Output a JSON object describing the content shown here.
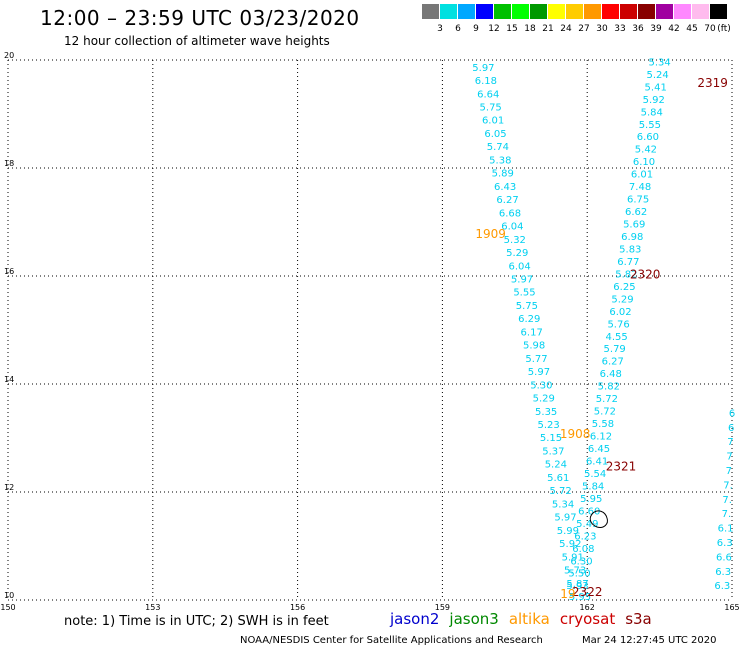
{
  "header": {
    "title": "12:00 – 23:59 UTC 03/23/2020",
    "subtitle": "12 hour collection of altimeter wave heights"
  },
  "colorbar": {
    "unit": "(ft)",
    "labels": [
      "3",
      "6",
      "9",
      "12",
      "15",
      "18",
      "21",
      "24",
      "27",
      "30",
      "33",
      "36",
      "39",
      "42",
      "45",
      "70"
    ],
    "colors": [
      "#777777",
      "#00e0e0",
      "#00a8ff",
      "#0000ff",
      "#00c000",
      "#00ff00",
      "#009900",
      "#ffff00",
      "#ffcc00",
      "#ff9900",
      "#ff0000",
      "#cc0000",
      "#880000",
      "#a000a0",
      "#ff88ff",
      "#ffbbee",
      "#000000"
    ]
  },
  "axes": {
    "lon_ticks": [
      "150",
      "153",
      "156",
      "159",
      "162",
      "165"
    ],
    "lat_ticks": [
      "10",
      "12",
      "14",
      "16",
      "18",
      "20"
    ],
    "lon_range": [
      150,
      165
    ],
    "lat_range": [
      10,
      20
    ]
  },
  "tracks": [
    {
      "mission": "jason2",
      "color": "#00d0f0",
      "lon_start": 159.85,
      "lat_start": 19.8,
      "lon_end": 161.85,
      "lat_end": 10.0,
      "values": [
        "5.97",
        "6.18",
        "6.64",
        "5.75",
        "6.01",
        "6.05",
        "5.74",
        "5.38",
        "5.89",
        "6.43",
        "6.27",
        "6.68",
        "6.04",
        "5.32",
        "5.29",
        "6.04",
        "5.97",
        "5.55",
        "5.75",
        "6.29",
        "6.17",
        "5.98",
        "5.77",
        "5.97",
        "5.30",
        "5.29",
        "5.35",
        "5.23",
        "5.15",
        "5.37",
        "5.24",
        "5.61",
        "5.72",
        "5.34",
        "5.97",
        "5.99",
        "5.92",
        "5.91",
        "5.73",
        "5.87",
        "5.95"
      ]
    },
    {
      "mission": "jason2",
      "color": "#00d0f0",
      "lon_start": 163.5,
      "lat_start": 19.9,
      "lon_end": 161.8,
      "lat_end": 10.2,
      "values": [
        "5.34",
        "5.24",
        "5.41",
        "5.92",
        "5.84",
        "5.55",
        "6.60",
        "5.42",
        "6.10",
        "6.01",
        "7.48",
        "6.75",
        "6.62",
        "5.69",
        "6.98",
        "5.83",
        "6.77",
        "5.82",
        "6.25",
        "5.29",
        "6.02",
        "5.76",
        "4.55",
        "5.79",
        "6.27",
        "6.48",
        "5.82",
        "5.72",
        "5.72",
        "5.58",
        "6.12",
        "6.45",
        "6.41",
        "5.54",
        "5.84",
        "5.95",
        "6.60",
        "5.49",
        "6.23",
        "6.08",
        "6.30",
        "5.50",
        "5.93"
      ]
    },
    {
      "mission": "jason2",
      "color": "#00d0f0",
      "lon_start": 165.0,
      "lat_start": 13.4,
      "lon_end": 164.8,
      "lat_end": 10.2,
      "values": [
        "6",
        "6",
        "7",
        "7",
        "7",
        "7.",
        "7.",
        "7.",
        "6.1",
        "6.3",
        "6.6",
        "6.3",
        "6.3"
      ]
    }
  ],
  "pass_labels": [
    {
      "text": "1909",
      "color": "#ff9900",
      "lon": 160.0,
      "lat": 16.7
    },
    {
      "text": "1908",
      "color": "#ff9900",
      "lon": 161.75,
      "lat": 13.0
    },
    {
      "text": "2319",
      "color": "#880000",
      "lon": 164.6,
      "lat": 19.5
    },
    {
      "text": "2320",
      "color": "#880000",
      "lon": 163.2,
      "lat": 15.95
    },
    {
      "text": "2321",
      "color": "#880000",
      "lon": 162.7,
      "lat": 12.4
    },
    {
      "text": "2322",
      "color": "#880000",
      "lon": 162.0,
      "lat": 10.07
    },
    {
      "text": "19",
      "color": "#ff9900",
      "lon": 161.6,
      "lat": 10.04
    }
  ],
  "note": "note:  1) Time is in UTC;  2) SWH is in feet",
  "missions": [
    {
      "name": "jason2",
      "color": "#0000cc"
    },
    {
      "name": "jason3",
      "color": "#008800"
    },
    {
      "name": "altika",
      "color": "#ff9900"
    },
    {
      "name": "cryosat",
      "color": "#cc0000"
    },
    {
      "name": "s3a",
      "color": "#880000"
    }
  ],
  "footer": {
    "source": "NOAA/NESDIS Center for Satellite Applications and Research",
    "timestamp": "Mar 24 12:27:45 UTC 2020"
  }
}
